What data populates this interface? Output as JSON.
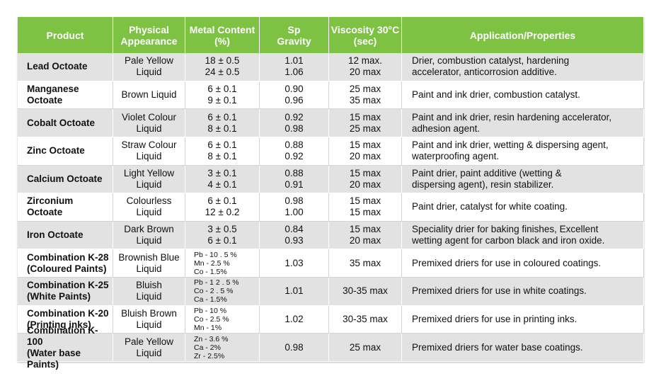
{
  "table": {
    "header": [
      [
        "Product"
      ],
      [
        "Physical",
        "Appearance"
      ],
      [
        "Metal Content",
        "(%)"
      ],
      [
        "Sp",
        "Gravity"
      ],
      [
        "Viscosity 30°C",
        "(sec)"
      ],
      [
        "Application/Properties"
      ]
    ],
    "rows": [
      [
        [
          "Lead Octoate"
        ],
        [
          "Pale Yellow",
          "Liquid"
        ],
        [
          "18 ± 0.5",
          "24 ± 0.5"
        ],
        [
          "1.01",
          "1.06"
        ],
        [
          "12 max.",
          "20 max"
        ],
        [
          "Drier, combustion catalyst, hardening",
          "accelerator, anticorrosion additive."
        ]
      ],
      [
        [
          "Manganese",
          "Octoate"
        ],
        [
          "Brown Liquid"
        ],
        [
          "6 ± 0.1",
          "9 ± 0.1"
        ],
        [
          "0.90",
          "0.96"
        ],
        [
          "25 max",
          "35 max"
        ],
        [
          "Paint and ink drier, combustion catalyst."
        ]
      ],
      [
        [
          "Cobalt Octoate"
        ],
        [
          "Violet Colour",
          "Liquid"
        ],
        [
          "6 ± 0.1",
          "8 ± 0.1"
        ],
        [
          "0.92",
          "0.98"
        ],
        [
          "15 max",
          "25 max"
        ],
        [
          "Paint and ink drier, resin hardening accelerator,",
          "adhesion agent."
        ]
      ],
      [
        [
          "Zinc Octoate"
        ],
        [
          "Straw Colour",
          "Liquid"
        ],
        [
          "6 ± 0.1",
          "8 ± 0.1"
        ],
        [
          "0.88",
          "0.92"
        ],
        [
          "15 max",
          "20 max"
        ],
        [
          "Paint and ink drier, wetting & dispersing agent,",
          "waterproofing agent."
        ]
      ],
      [
        [
          "Calcium Octoate"
        ],
        [
          "Light Yellow",
          "Liquid"
        ],
        [
          "3 ± 0.1",
          "4 ± 0.1"
        ],
        [
          "0.88",
          "0.91"
        ],
        [
          "15 max",
          "20 max"
        ],
        [
          "Paint drier, paint additive (wetting &",
          "dispersing agent), resin stabilizer."
        ]
      ],
      [
        [
          "Zirconium",
          "Octoate"
        ],
        [
          "Colourless",
          "Liquid"
        ],
        [
          "6 ± 0.1",
          "12 ± 0.2"
        ],
        [
          "0.98",
          "1.00"
        ],
        [
          "15 max",
          "15 max"
        ],
        [
          "Paint drier, catalyst for white coating."
        ]
      ],
      [
        [
          "Iron Octoate"
        ],
        [
          "Dark Brown",
          "Liquid"
        ],
        [
          "3 ± 0.5",
          "6 ± 0.1"
        ],
        [
          "0.84",
          "0.93"
        ],
        [
          "15 max",
          "20 max"
        ],
        [
          "Speciality drier for baking finishes, Excellent",
          "wetting agent for carbon black and iron oxide."
        ]
      ],
      [
        [
          "Combination K-28",
          "(Coloured Paints)"
        ],
        [
          "Brownish Blue",
          "Liquid"
        ],
        [
          "Pb - 10 . 5 %",
          "Mn - 2.5 %",
          "Co - 1.5%"
        ],
        [
          "1.03"
        ],
        [
          "35 max"
        ],
        [
          "Premixed driers for use in coloured coatings."
        ]
      ],
      [
        [
          "Combination K-25",
          "(White Paints)"
        ],
        [
          "Bluish",
          "Liquid"
        ],
        [
          "Pb - 1 2 . 5 %",
          "Co - 2 . 5 %",
          "Ca - 1.5%"
        ],
        [
          "1.01"
        ],
        [
          "30-35 max"
        ],
        [
          "Premixed driers for use in white coatings."
        ]
      ],
      [
        [
          "Combination K-20",
          "(Printing inks)"
        ],
        [
          "Bluish Brown",
          "Liquid"
        ],
        [
          "Pb - 10 %",
          "Co - 2.5 %",
          "Mn - 1%"
        ],
        [
          "1.02"
        ],
        [
          "30-35 max"
        ],
        [
          "Premixed driers for use in printing inks."
        ]
      ],
      [
        [
          "Combination K-100",
          "(Water base Paints)"
        ],
        [
          "Pale Yellow",
          "Liquid"
        ],
        [
          "Zn - 3.6 %",
          "Ca - 2%",
          "Zr - 2.5%"
        ],
        [
          "0.98"
        ],
        [
          "25 max"
        ],
        [
          "Premixed driers for water base coatings."
        ]
      ]
    ]
  }
}
